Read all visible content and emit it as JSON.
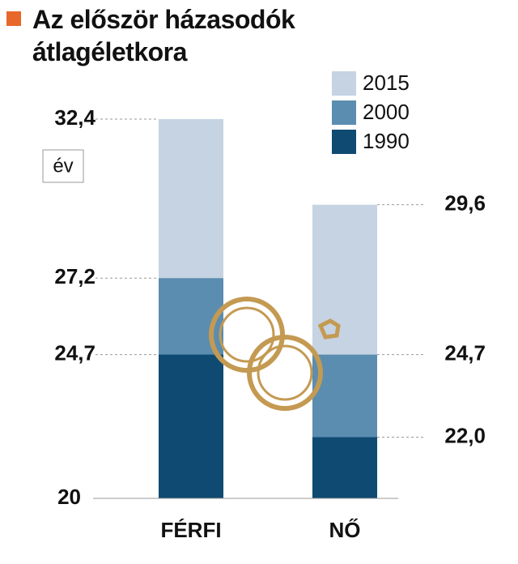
{
  "chart_data": {
    "type": "bar",
    "title": "Az először házasodók átlagéletkora",
    "unit_label": "év",
    "categories": [
      "FÉRFI",
      "NŐ"
    ],
    "series": [
      {
        "name": "2015",
        "color": "#c5d3e2",
        "values": [
          32.4,
          29.6
        ],
        "value_labels": [
          "32,4",
          "29,6"
        ]
      },
      {
        "name": "2000",
        "color": "#5b8db0",
        "values": [
          27.2,
          24.7
        ],
        "value_labels": [
          "27,2",
          "24,7"
        ]
      },
      {
        "name": "1990",
        "color": "#0f4a72",
        "values": [
          24.7,
          22.0
        ],
        "value_labels": [
          "24,7",
          "22,0"
        ]
      }
    ],
    "ylim": [
      20,
      32.4
    ],
    "yticks": [
      20
    ],
    "legend": "top-right"
  }
}
